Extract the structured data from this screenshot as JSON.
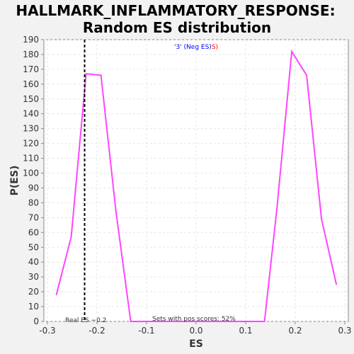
{
  "chart_data": {
    "type": "line",
    "title_line1": "HALLMARK_INFLAMMATORY_RESPONSE:",
    "title_line2": "Random ES distribution",
    "xlabel": "ES",
    "ylabel": "P(ES)",
    "xlim": [
      -0.3,
      0.3
    ],
    "ylim": [
      0,
      190
    ],
    "x_ticks": [
      -0.3,
      -0.2,
      -0.1,
      0.0,
      0.1,
      0.2,
      0.3
    ],
    "x_tick_labels": [
      "-0.3",
      "-0.2",
      "-0.1",
      "0.0",
      "0.1",
      "0.2",
      "0.3"
    ],
    "y_ticks": [
      0,
      10,
      20,
      30,
      40,
      50,
      60,
      70,
      80,
      90,
      100,
      110,
      120,
      130,
      140,
      150,
      160,
      170,
      180,
      190
    ],
    "grid": true,
    "legend": {
      "placement": "top-center",
      "label": "'3' (Neg ES)",
      "label_color": "#0000ff",
      "suffix": "S)",
      "suffix_color": "#ff0000"
    },
    "series": [
      {
        "color": "#ff44ff",
        "x": [
          -0.282,
          -0.252,
          -0.222,
          -0.192,
          -0.162,
          -0.132,
          -0.102,
          -0.072,
          -0.042,
          -0.012,
          0.018,
          0.048,
          0.078,
          0.108,
          0.138,
          0.163,
          0.193,
          0.223,
          0.253,
          0.283
        ],
        "y": [
          18,
          57,
          167,
          166,
          75,
          0,
          0,
          0,
          0,
          0,
          0,
          0,
          0,
          0,
          0,
          76,
          182,
          166,
          69,
          25
        ]
      }
    ],
    "real_es": {
      "value": -0.225,
      "label": "Real ES −0.2",
      "line_style": "dashed",
      "line_color": "#000000"
    },
    "annotation": "Sets with pos scores: 52%"
  }
}
